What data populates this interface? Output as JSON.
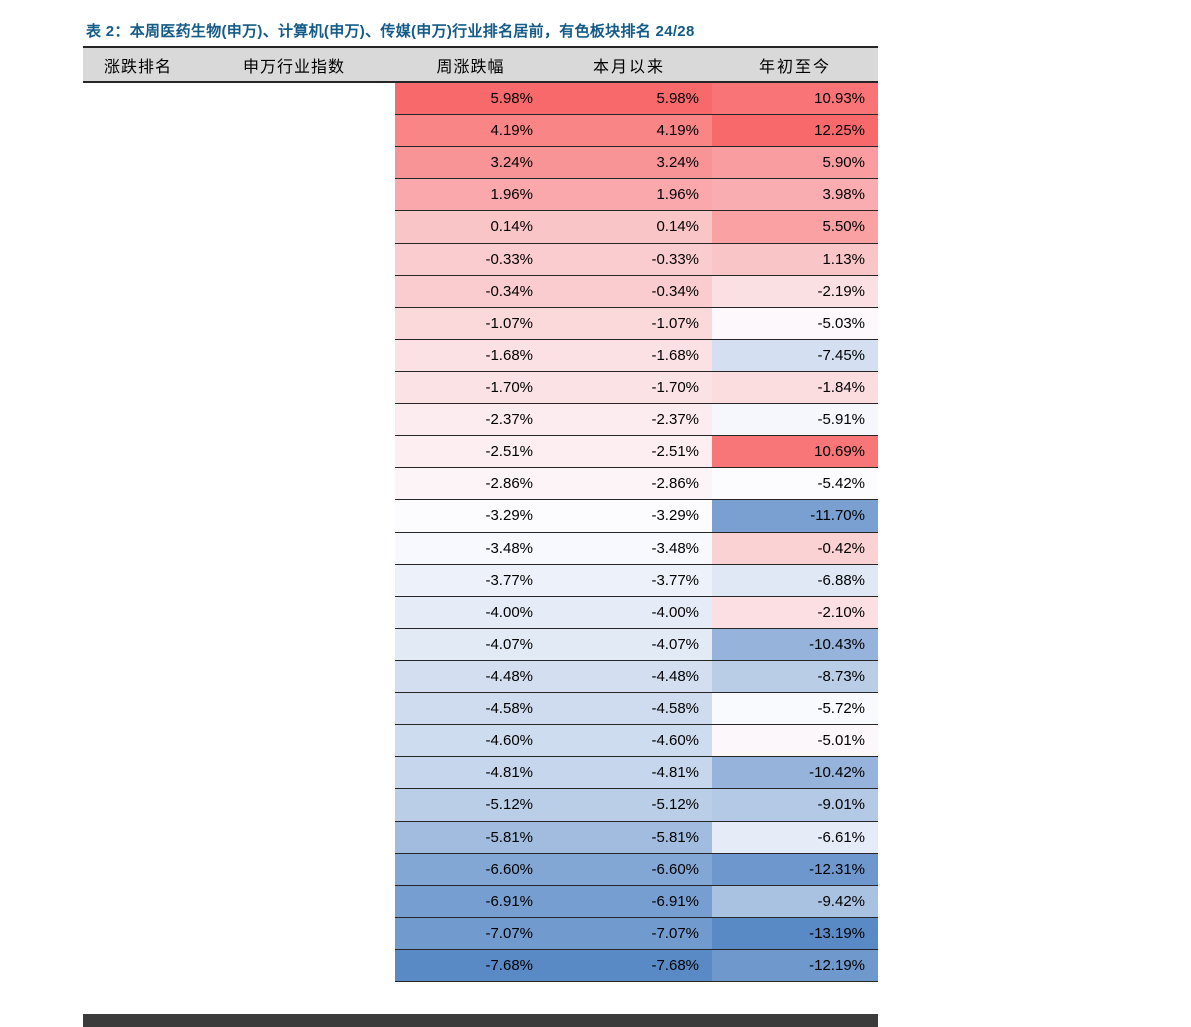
{
  "title": "表 2：本周医药生物(申万)、计算机(申万)、传媒(申万)行业排名居前，有色板块排名 24/28",
  "colors": {
    "title_color": "#155B87",
    "header_bg": "#D9D9D9",
    "border_color": "#262626",
    "bar_color": "#3B3B3B"
  },
  "chart_data": {
    "type": "table",
    "title": "表 2：本周医药生物(申万)、计算机(申万)、传媒(申万)行业排名居前，有色板块排名 24/28",
    "columns": [
      "涨跌排名",
      "申万行业指数",
      "周涨跌幅",
      "本月以来",
      "年初至今"
    ],
    "value_columns": [
      "周涨跌幅",
      "本月以来",
      "年初至今"
    ],
    "unit": "%",
    "rows": [
      [
        5.98,
        5.98,
        10.93
      ],
      [
        4.19,
        4.19,
        12.25
      ],
      [
        3.24,
        3.24,
        5.9
      ],
      [
        1.96,
        1.96,
        3.98
      ],
      [
        0.14,
        0.14,
        5.5
      ],
      [
        -0.33,
        -0.33,
        1.13
      ],
      [
        -0.34,
        -0.34,
        -2.19
      ],
      [
        -1.07,
        -1.07,
        -5.03
      ],
      [
        -1.68,
        -1.68,
        -7.45
      ],
      [
        -1.7,
        -1.7,
        -1.84
      ],
      [
        -2.37,
        -2.37,
        -5.91
      ],
      [
        -2.51,
        -2.51,
        10.69
      ],
      [
        -2.86,
        -2.86,
        -5.42
      ],
      [
        -3.29,
        -3.29,
        -11.7
      ],
      [
        -3.48,
        -3.48,
        -0.42
      ],
      [
        -3.77,
        -3.77,
        -6.88
      ],
      [
        -4.0,
        -4.0,
        -2.1
      ],
      [
        -4.07,
        -4.07,
        -10.43
      ],
      [
        -4.48,
        -4.48,
        -8.73
      ],
      [
        -4.58,
        -4.58,
        -5.72
      ],
      [
        -4.6,
        -4.6,
        -5.01
      ],
      [
        -4.81,
        -4.81,
        -10.42
      ],
      [
        -5.12,
        -5.12,
        -9.01
      ],
      [
        -5.81,
        -5.81,
        -6.61
      ],
      [
        -6.6,
        -6.6,
        -12.31
      ],
      [
        -6.91,
        -6.91,
        -9.42
      ],
      [
        -7.07,
        -7.07,
        -13.19
      ],
      [
        -7.68,
        -7.68,
        -12.19
      ]
    ],
    "conditional_formatting": {
      "style": "3-color-scale-per-column",
      "max_color": "#F8696B",
      "mid_color": "#FCFCFF",
      "min_color": "#5A8AC6",
      "midpoint": "50th-percentile"
    },
    "layout": {
      "rank_and_index_cells": "blank",
      "value_alignment": "right",
      "grid": "horizontal-only"
    }
  }
}
